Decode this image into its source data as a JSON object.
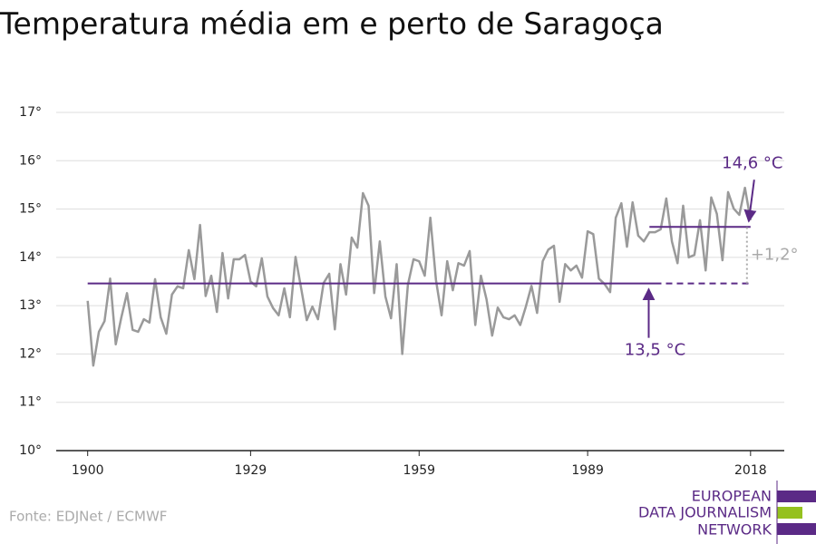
{
  "chart_data": {
    "type": "line",
    "title": "Temperatura média em e perto de Saragoça",
    "source": "Fonte: EDJNet / ECMWF",
    "logo": [
      "EUROPEAN",
      "DATA JOURNALISM",
      "NETWORK"
    ],
    "x": [
      1900,
      1901,
      1902,
      1903,
      1904,
      1905,
      1906,
      1907,
      1908,
      1909,
      1910,
      1911,
      1912,
      1913,
      1914,
      1915,
      1916,
      1917,
      1918,
      1919,
      1920,
      1921,
      1922,
      1923,
      1924,
      1925,
      1926,
      1927,
      1928,
      1929,
      1930,
      1931,
      1932,
      1933,
      1934,
      1935,
      1936,
      1937,
      1938,
      1939,
      1940,
      1941,
      1942,
      1943,
      1944,
      1945,
      1946,
      1947,
      1948,
      1949,
      1950,
      1951,
      1952,
      1953,
      1954,
      1955,
      1956,
      1957,
      1958,
      1959,
      1960,
      1961,
      1962,
      1963,
      1964,
      1965,
      1966,
      1967,
      1968,
      1969,
      1970,
      1971,
      1972,
      1973,
      1974,
      1975,
      1976,
      1977,
      1978,
      1979,
      1980,
      1981,
      1982,
      1983,
      1984,
      1985,
      1986,
      1987,
      1988,
      1989,
      1990,
      1991,
      1992,
      1993,
      1994,
      1995,
      1996,
      1997,
      1998,
      1999,
      2000,
      2001,
      2002,
      2003,
      2004,
      2005,
      2006,
      2007,
      2008,
      2009,
      2010,
      2011,
      2012,
      2013,
      2014,
      2015,
      2016,
      2017,
      2018
    ],
    "series": [
      {
        "color": "#9a9a9a",
        "values": [
          13.1,
          11.76,
          12.46,
          12.68,
          13.56,
          12.2,
          12.76,
          13.26,
          12.5,
          12.46,
          12.72,
          12.65,
          13.55,
          12.76,
          12.42,
          13.23,
          13.4,
          13.36,
          14.15,
          13.55,
          14.67,
          13.2,
          13.62,
          12.87,
          14.09,
          13.15,
          13.96,
          13.96,
          14.05,
          13.5,
          13.4,
          13.98,
          13.19,
          12.95,
          12.8,
          13.36,
          12.76,
          14.01,
          13.36,
          12.7,
          12.98,
          12.72,
          13.47,
          13.66,
          12.51,
          13.86,
          13.23,
          14.41,
          14.2,
          15.33,
          15.07,
          13.26,
          14.33,
          13.19,
          12.74,
          13.86,
          12.0,
          13.43,
          13.96,
          13.92,
          13.62,
          14.82,
          13.53,
          12.8,
          13.92,
          13.32,
          13.88,
          13.83,
          14.13,
          12.6,
          13.62,
          13.13,
          12.38,
          12.96,
          12.76,
          12.72,
          12.8,
          12.6,
          12.98,
          13.41,
          12.85,
          13.92,
          14.16,
          14.24,
          13.08,
          13.86,
          13.73,
          13.83,
          13.58,
          14.54,
          14.48,
          13.56,
          13.45,
          13.28,
          14.82,
          15.12,
          14.22,
          15.14,
          14.45,
          14.33,
          14.52,
          14.52,
          14.58,
          15.22,
          14.33,
          13.88,
          15.07,
          14.0,
          14.05,
          14.77,
          13.73,
          15.24,
          14.9,
          13.94,
          15.35,
          15.01,
          14.88,
          15.44,
          14.77
        ]
      }
    ],
    "reference_lines": [
      {
        "label": "13,5 °C",
        "value": 13.46,
        "x": [
          1900,
          2018
        ],
        "dashed_from": 2001,
        "color": "#5b2a86"
      },
      {
        "label": "14,6 °C",
        "value": 14.63,
        "x": [
          2000,
          2018
        ],
        "color": "#5b2a86"
      }
    ],
    "difference_label": "+1,2°",
    "xlim": [
      1894.4,
      2024
    ],
    "xticks": [
      1900,
      1929,
      1959,
      1989,
      2018
    ],
    "ylim": [
      10,
      17
    ],
    "yticks": [
      {
        "value": 10,
        "label": "10°"
      },
      {
        "value": 11,
        "label": "11°"
      },
      {
        "value": 12,
        "label": "12°"
      },
      {
        "value": 13,
        "label": "13°"
      },
      {
        "value": 14,
        "label": "14°"
      },
      {
        "value": 15,
        "label": "15°"
      },
      {
        "value": 16,
        "label": "16°"
      },
      {
        "value": 17,
        "label": "17°"
      }
    ],
    "grid": true
  }
}
